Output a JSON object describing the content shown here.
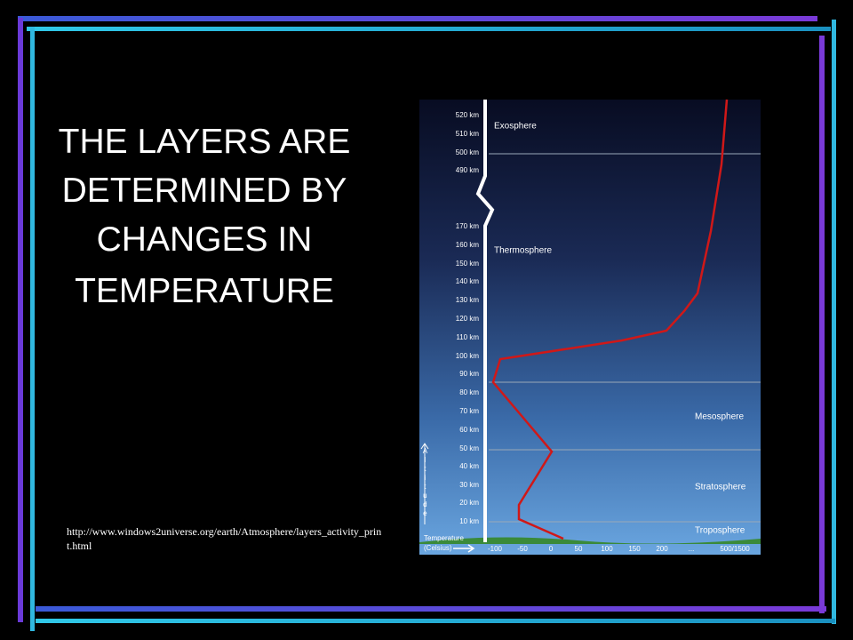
{
  "slide": {
    "title_lines": [
      "THE LAYERS ARE",
      "DETERMINED BY",
      "CHANGES IN",
      "TEMPERATURE"
    ],
    "source_url": "http://www.windows2universe.org/earth/Atmosphere/layers_activity_print.html"
  },
  "figure": {
    "altitude_labels": [
      "520 km",
      "510 km",
      "500 km",
      "490 km",
      "170 km",
      "160 km",
      "150 km",
      "140 km",
      "130 km",
      "120 km",
      "110 km",
      "100 km",
      "90 km",
      "80 km",
      "70 km",
      "60 km",
      "50 km",
      "40 km",
      "30 km",
      "20 km",
      "10 km"
    ],
    "layers": [
      "Exosphere",
      "Thermosphere",
      "Mesosphere",
      "Stratosphere",
      "Troposphere"
    ],
    "altitude_axis_title": "Altitude",
    "temperature_axis_title": "Temperature",
    "temperature_unit": "(Celsius)",
    "temperature_labels": [
      "-100",
      "-50",
      "0",
      "50",
      "100",
      "150",
      "200",
      "...",
      "500/1500"
    ]
  }
}
